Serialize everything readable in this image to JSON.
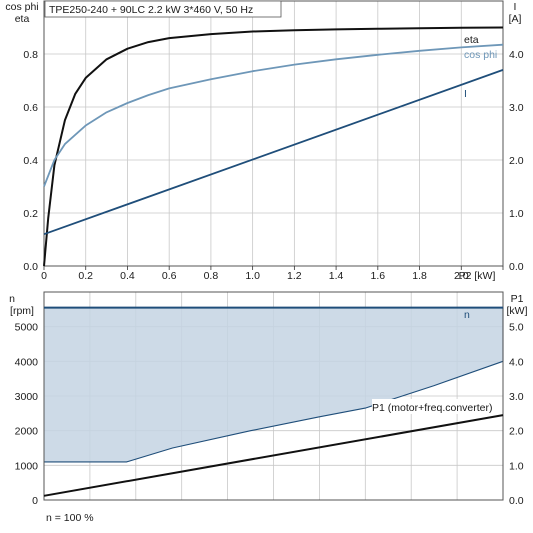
{
  "colors": {
    "eta": "#111111",
    "cosphi": "#6e97b8",
    "current": "#1f4e7a",
    "speed": "#1f4e7a",
    "p1": "#111111",
    "range_fill": "#c4d3e3",
    "range_edge": "#1f4e7a"
  },
  "chart_data": [
    {
      "type": "line",
      "title": "TPE250-240 + 90LC   2.2 kW   3*460 V, 50 Hz",
      "xlabel": "P2 [kW]",
      "ylabel_left": [
        "cos phi",
        "eta"
      ],
      "ylabel_right": [
        "I",
        "[A]"
      ],
      "xlim": [
        0,
        2.2
      ],
      "ylim_left": [
        0,
        1.0
      ],
      "ylim_right": [
        0,
        5.0
      ],
      "x_ticks": [
        "0",
        "0.2",
        "0.4",
        "0.6",
        "0.8",
        "1.0",
        "1.2",
        "1.4",
        "1.6",
        "1.8",
        "2.0",
        "2.2"
      ],
      "x_tick_values": [
        0,
        0.2,
        0.4,
        0.6,
        0.8,
        1.0,
        1.2,
        1.4,
        1.6,
        1.8,
        2.0,
        2.2
      ],
      "y_left_ticks": [
        "0.0",
        "0.2",
        "0.4",
        "0.6",
        "0.8"
      ],
      "y_left_tick_values": [
        0,
        0.2,
        0.4,
        0.6,
        0.8
      ],
      "y_right_ticks": [
        "0.0",
        "1.0",
        "2.0",
        "3.0",
        "4.0"
      ],
      "y_right_tick_values": [
        0,
        1,
        2,
        3,
        4
      ],
      "grid": true,
      "series": [
        {
          "name": "eta",
          "axis": "left",
          "color_key": "eta",
          "x": [
            0,
            0.02,
            0.05,
            0.1,
            0.15,
            0.2,
            0.3,
            0.4,
            0.5,
            0.6,
            0.8,
            1.0,
            1.2,
            1.4,
            1.6,
            1.8,
            2.0,
            2.2
          ],
          "y": [
            0,
            0.18,
            0.38,
            0.55,
            0.65,
            0.71,
            0.78,
            0.82,
            0.845,
            0.86,
            0.875,
            0.885,
            0.89,
            0.893,
            0.895,
            0.897,
            0.899,
            0.9
          ]
        },
        {
          "name": "cos phi",
          "axis": "left",
          "color_key": "cosphi",
          "x": [
            0,
            0.05,
            0.1,
            0.2,
            0.3,
            0.4,
            0.5,
            0.6,
            0.8,
            1.0,
            1.2,
            1.4,
            1.6,
            1.8,
            2.0,
            2.2
          ],
          "y": [
            0.3,
            0.4,
            0.46,
            0.53,
            0.58,
            0.615,
            0.645,
            0.67,
            0.705,
            0.735,
            0.76,
            0.78,
            0.797,
            0.812,
            0.825,
            0.835
          ]
        },
        {
          "name": "I",
          "axis": "right",
          "color_key": "current",
          "x": [
            0,
            2.2
          ],
          "y": [
            0.6,
            3.7
          ]
        }
      ]
    },
    {
      "type": "line",
      "xlabel": "",
      "ylabel_left": [
        "n",
        "[rpm]"
      ],
      "ylabel_right": [
        "P1",
        "[kW]"
      ],
      "xlim": [
        0,
        10
      ],
      "ylim_left": [
        0,
        6000
      ],
      "ylim_right": [
        0,
        6.0
      ],
      "y_left_ticks": [
        "0",
        "1000",
        "2000",
        "3000",
        "4000",
        "5000"
      ],
      "y_left_tick_values": [
        0,
        1000,
        2000,
        3000,
        4000,
        5000
      ],
      "y_right_ticks": [
        "0.0",
        "1.0",
        "2.0",
        "3.0",
        "4.0",
        "5.0"
      ],
      "y_right_tick_values": [
        0,
        1,
        2,
        3,
        4,
        5
      ],
      "grid": true,
      "operating_range": {
        "upper_x": [
          0,
          10
        ],
        "upper_y": [
          5550,
          5550
        ],
        "lower_x": [
          0,
          1.8,
          2.8,
          4.5,
          6.0,
          7.0,
          8.5,
          10.0
        ],
        "lower_y": [
          1100,
          1100,
          1500,
          2000,
          2400,
          2650,
          3300,
          4000
        ]
      },
      "series": [
        {
          "name": "n",
          "axis": "left",
          "color_key": "speed",
          "x": [
            0,
            10
          ],
          "y": [
            5550,
            5550
          ]
        },
        {
          "name": "P1 (motor+freq.converter)",
          "axis": "right",
          "color_key": "p1",
          "x": [
            0,
            10
          ],
          "y": [
            0.12,
            2.45
          ]
        }
      ]
    }
  ],
  "footer": {
    "note": "n = 100 %"
  }
}
